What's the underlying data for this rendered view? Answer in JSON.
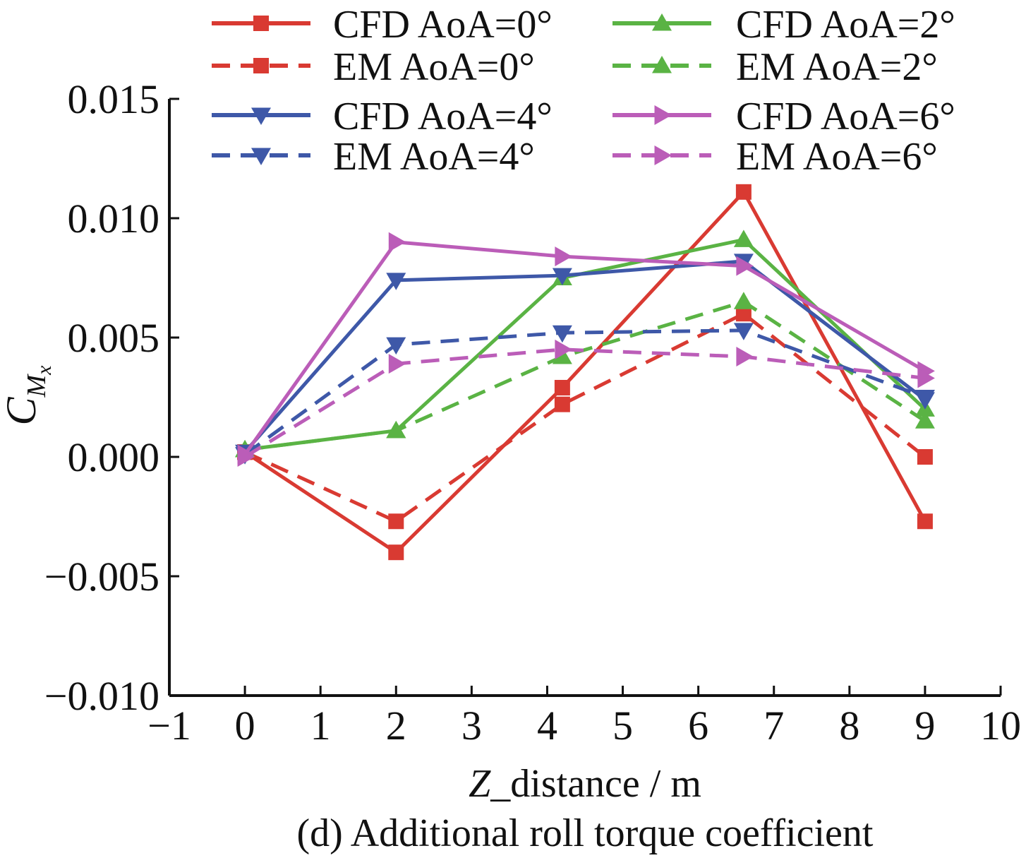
{
  "chart_data": {
    "type": "line",
    "caption": "(d) Additional roll torque coefficient",
    "xlabel": {
      "italic": "Z",
      "rest": "_distance / m"
    },
    "ylabel": {
      "main": "C",
      "sub_main": "M",
      "sub_sub": "x"
    },
    "xlim": [
      -1,
      10
    ],
    "ylim": [
      -0.01,
      0.015
    ],
    "xticks": [
      -1,
      0,
      1,
      2,
      3,
      4,
      5,
      6,
      7,
      8,
      9,
      10
    ],
    "xtick_labels": [
      "−1",
      "0",
      "1",
      "2",
      "3",
      "4",
      "5",
      "6",
      "7",
      "8",
      "9",
      "10"
    ],
    "yticks": [
      -0.01,
      -0.005,
      0.0,
      0.005,
      0.01,
      0.015
    ],
    "ytick_labels": [
      "−0.010",
      "−0.005",
      "0.000",
      "0.005",
      "0.010",
      "0.015"
    ],
    "legend_position": "top",
    "x": [
      0,
      2,
      4.2,
      6.6,
      9
    ],
    "series": [
      {
        "name": "CFD AoA=0°",
        "color": "#d93a32",
        "dash": "solid",
        "marker": "square",
        "values": [
          0.0002,
          -0.004,
          0.0029,
          0.0111,
          -0.0027
        ]
      },
      {
        "name": "EM AoA=0°",
        "color": "#d93a32",
        "dash": "dashed",
        "marker": "square",
        "values": [
          0.0002,
          -0.0027,
          0.0022,
          0.006,
          0.0
        ]
      },
      {
        "name": "CFD AoA=2°",
        "color": "#5ab344",
        "dash": "solid",
        "marker": "triangle-up",
        "values": [
          0.0003,
          0.0011,
          0.0075,
          0.0091,
          0.002
        ]
      },
      {
        "name": "EM AoA=2°",
        "color": "#5ab344",
        "dash": "dashed",
        "marker": "triangle-up",
        "values": [
          0.0003,
          0.0011,
          0.0042,
          0.0065,
          0.0015
        ]
      },
      {
        "name": "CFD AoA=4°",
        "color": "#3e58a8",
        "dash": "solid",
        "marker": "triangle-down",
        "values": [
          0.0002,
          0.0074,
          0.0076,
          0.0082,
          0.0024
        ]
      },
      {
        "name": "EM AoA=4°",
        "color": "#3e58a8",
        "dash": "dashed",
        "marker": "triangle-down",
        "values": [
          0.0001,
          0.0047,
          0.0052,
          0.0053,
          0.0025
        ]
      },
      {
        "name": "CFD AoA=6°",
        "color": "#bb5db8",
        "dash": "solid",
        "marker": "triangle-right",
        "values": [
          0.0001,
          0.009,
          0.0084,
          0.008,
          0.0036
        ]
      },
      {
        "name": "EM AoA=6°",
        "color": "#bb5db8",
        "dash": "dashed",
        "marker": "triangle-right",
        "values": [
          0.0,
          0.0039,
          0.0045,
          0.0042,
          0.0033
        ]
      }
    ]
  }
}
